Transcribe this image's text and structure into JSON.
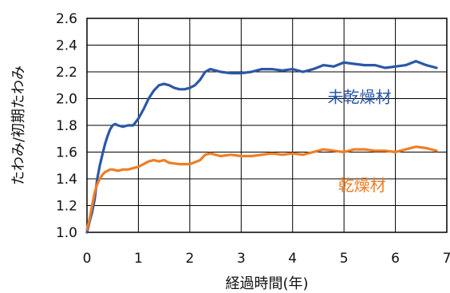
{
  "chart_data": {
    "type": "line",
    "xlabel": "経過時間(年)",
    "ylabel": "たわみ/初期たわみ",
    "xlim": [
      0,
      7
    ],
    "ylim": [
      1.0,
      2.6
    ],
    "xticks": [
      "0",
      "1",
      "2",
      "3",
      "4",
      "5",
      "6",
      "7"
    ],
    "yticks": [
      "1.0",
      "1.2",
      "1.4",
      "1.6",
      "1.8",
      "2.0",
      "2.2",
      "2.4",
      "2.6"
    ],
    "grid": true,
    "legend": "inline labels",
    "series": [
      {
        "name": "未乾燥材",
        "color": "#2b57a6",
        "x": [
          0,
          0.05,
          0.1,
          0.15,
          0.2,
          0.25,
          0.3,
          0.35,
          0.4,
          0.45,
          0.5,
          0.55,
          0.6,
          0.7,
          0.8,
          0.9,
          1.0,
          1.1,
          1.2,
          1.3,
          1.4,
          1.5,
          1.6,
          1.7,
          1.8,
          1.9,
          2.0,
          2.1,
          2.2,
          2.3,
          2.4,
          2.5,
          2.6,
          2.8,
          3.0,
          3.2,
          3.4,
          3.6,
          3.8,
          4.0,
          4.2,
          4.4,
          4.6,
          4.8,
          5.0,
          5.2,
          5.4,
          5.6,
          5.8,
          6.0,
          6.2,
          6.4,
          6.6,
          6.8
        ],
        "y": [
          1.0,
          1.08,
          1.15,
          1.25,
          1.4,
          1.5,
          1.58,
          1.66,
          1.72,
          1.77,
          1.8,
          1.81,
          1.8,
          1.79,
          1.8,
          1.8,
          1.85,
          1.92,
          2.0,
          2.06,
          2.1,
          2.11,
          2.1,
          2.08,
          2.07,
          2.07,
          2.08,
          2.1,
          2.14,
          2.2,
          2.22,
          2.21,
          2.2,
          2.19,
          2.19,
          2.2,
          2.22,
          2.22,
          2.21,
          2.22,
          2.2,
          2.22,
          2.25,
          2.24,
          2.27,
          2.26,
          2.25,
          2.25,
          2.23,
          2.24,
          2.25,
          2.28,
          2.25,
          2.23
        ]
      },
      {
        "name": "乾燥材",
        "color": "#ef7e24",
        "x": [
          0,
          0.05,
          0.1,
          0.15,
          0.2,
          0.25,
          0.3,
          0.35,
          0.4,
          0.45,
          0.5,
          0.6,
          0.7,
          0.8,
          0.9,
          1.0,
          1.1,
          1.2,
          1.3,
          1.4,
          1.5,
          1.6,
          1.8,
          2.0,
          2.2,
          2.3,
          2.4,
          2.6,
          2.8,
          3.0,
          3.2,
          3.4,
          3.6,
          3.8,
          4.0,
          4.2,
          4.4,
          4.6,
          4.8,
          5.0,
          5.2,
          5.4,
          5.6,
          5.8,
          6.0,
          6.2,
          6.4,
          6.6,
          6.8
        ],
        "y": [
          1.02,
          1.1,
          1.2,
          1.3,
          1.36,
          1.4,
          1.43,
          1.45,
          1.46,
          1.47,
          1.47,
          1.46,
          1.47,
          1.47,
          1.48,
          1.49,
          1.51,
          1.53,
          1.54,
          1.53,
          1.54,
          1.52,
          1.51,
          1.51,
          1.54,
          1.58,
          1.59,
          1.57,
          1.58,
          1.57,
          1.57,
          1.58,
          1.59,
          1.58,
          1.59,
          1.58,
          1.6,
          1.62,
          1.61,
          1.6,
          1.62,
          1.62,
          1.61,
          1.61,
          1.6,
          1.62,
          1.64,
          1.63,
          1.61
        ]
      }
    ],
    "annotations": [
      {
        "text": "未乾燥材",
        "color": "#2b57a6",
        "x": 5.3,
        "y": 1.97
      },
      {
        "text": "乾燥材",
        "color": "#ef7e24",
        "x": 5.35,
        "y": 1.31
      }
    ]
  }
}
